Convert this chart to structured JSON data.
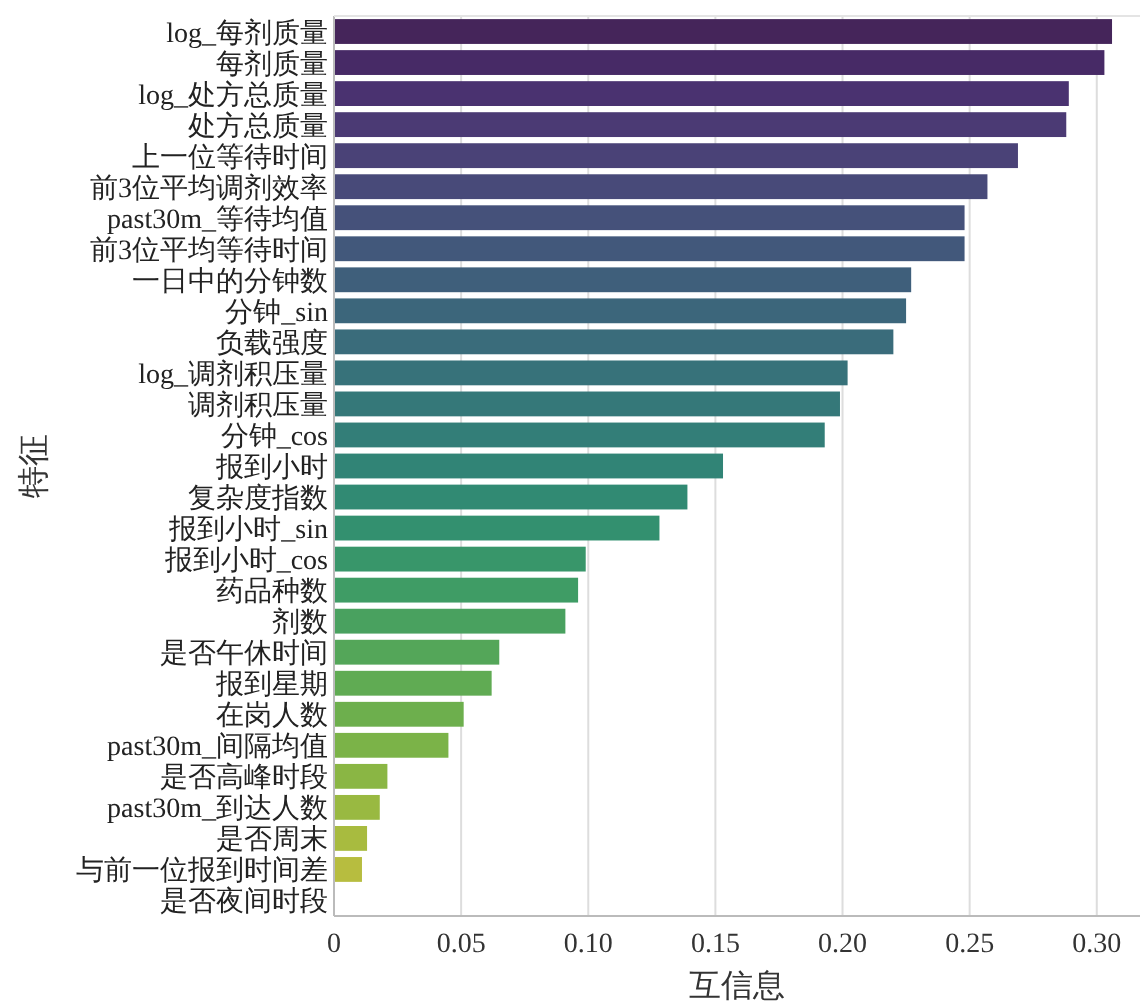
{
  "chart_data": {
    "type": "bar",
    "orientation": "horizontal",
    "xlabel": "互信息",
    "ylabel": "特征",
    "categories": [
      "log_每剂质量",
      "每剂质量",
      "log_处方总质量",
      "处方总质量",
      "上一位等待时间",
      "前3位平均调剂效率",
      "past30m_等待均值",
      "前3位平均等待时间",
      "一日中的分钟数",
      "分钟_sin",
      "负载强度",
      "log_调剂积压量",
      "调剂积压量",
      "分钟_cos",
      "报到小时",
      "复杂度指数",
      "报到小时_sin",
      "报到小时_cos",
      "药品种数",
      "剂数",
      "是否午休时间",
      "报到星期",
      "在岗人数",
      "past30m_间隔均值",
      "是否高峰时段",
      "past30m_到达人数",
      "是否周末",
      "与前一位报到时间差",
      "是否夜间时段"
    ],
    "values": [
      0.306,
      0.303,
      0.289,
      0.288,
      0.269,
      0.257,
      0.248,
      0.248,
      0.227,
      0.225,
      0.22,
      0.202,
      0.199,
      0.193,
      0.153,
      0.139,
      0.128,
      0.099,
      0.096,
      0.091,
      0.065,
      0.062,
      0.051,
      0.045,
      0.021,
      0.018,
      0.013,
      0.011,
      0
    ],
    "colors": [
      "#45255a",
      "#472a66",
      "#4a3270",
      "#4b3a74",
      "#4a4277",
      "#484a79",
      "#45517a",
      "#42587b",
      "#3f5f7b",
      "#3c667b",
      "#3a6c7b",
      "#37727a",
      "#357879",
      "#337e78",
      "#318476",
      "#318a73",
      "#33906f",
      "#38966a",
      "#3f9c65",
      "#49a15f",
      "#54a659",
      "#60ab53",
      "#6daf4d",
      "#7bb348",
      "#8ab644",
      "#99b941",
      "#a8bb3f",
      "#b7bd3f",
      "#c6bf42"
    ],
    "xlim": [
      0,
      0.317
    ],
    "xticks": [
      0,
      {
        "value": 0.05,
        "label": "0.05"
      },
      {
        "value": 0.1,
        "label": "0.10"
      },
      {
        "value": 0.15,
        "label": "0.15"
      },
      {
        "value": 0.2,
        "label": "0.20"
      },
      {
        "value": 0.25,
        "label": "0.25"
      },
      {
        "value": 0.3,
        "label": "0.30"
      }
    ],
    "grid": "x"
  }
}
